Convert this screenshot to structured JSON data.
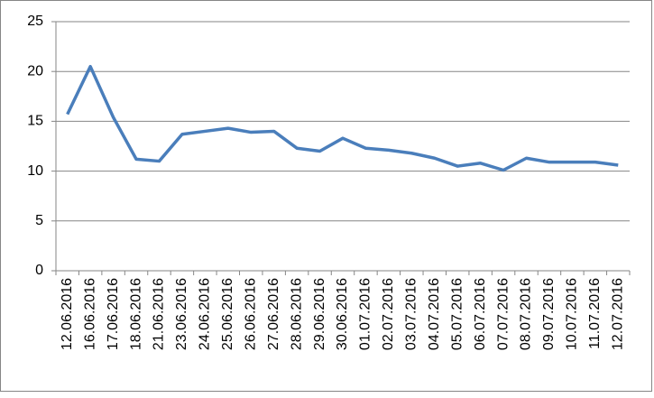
{
  "chart_data": {
    "type": "line",
    "categories": [
      "12.06.2016",
      "16.06.2016",
      "17.06.2016",
      "18.06.2016",
      "21.06.2016",
      "23.06.2016",
      "24.06.2016",
      "25.06.2016",
      "26.06.2016",
      "27.06.2016",
      "28.06.2016",
      "29.06.2016",
      "30.06.2016",
      "01.07.2016",
      "02.07.2016",
      "03.07.2016",
      "04.07.2016",
      "05.07.2016",
      "06.07.2016",
      "07.07.2016",
      "08.07.2016",
      "09.07.2016",
      "10.07.2016",
      "11.07.2016",
      "12.07.2016"
    ],
    "values": [
      15.7,
      20.5,
      15.4,
      11.2,
      11.0,
      13.7,
      14.0,
      14.3,
      13.9,
      14.0,
      12.3,
      12.0,
      13.3,
      12.3,
      12.1,
      11.8,
      11.3,
      10.5,
      10.8,
      10.1,
      11.3,
      10.9,
      10.9,
      10.9,
      10.6
    ],
    "color": "#4a7ebb",
    "ylim": [
      0,
      25
    ],
    "yticks": [
      0,
      5,
      10,
      15,
      20,
      25
    ],
    "grid": true
  }
}
